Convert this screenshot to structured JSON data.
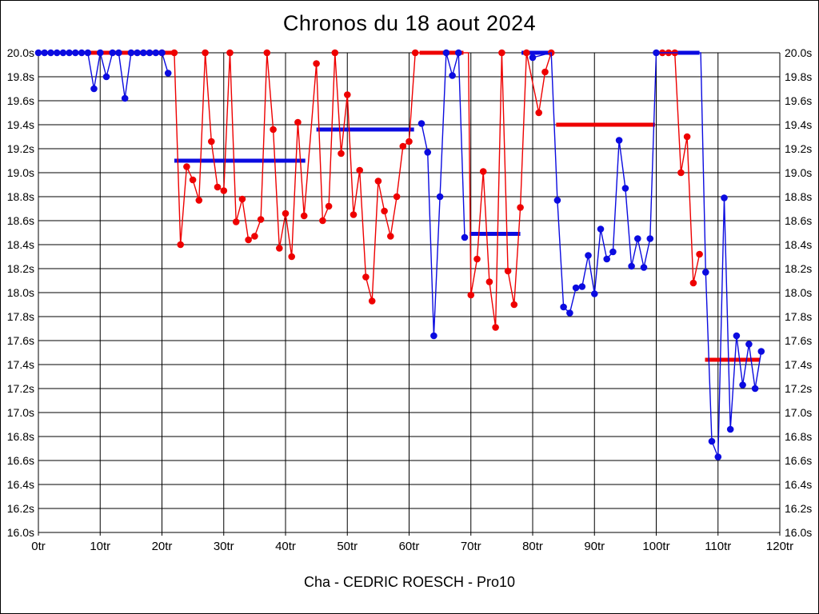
{
  "title": "Chronos du 18 aout 2024",
  "footer": "Cha - CEDRIC ROESCH - Pro10",
  "chart_data": {
    "type": "line",
    "title": "Chronos du 18 aout 2024",
    "subtitle": "Cha - CEDRIC ROESCH - Pro10",
    "grid": true,
    "xlim": [
      0,
      120
    ],
    "ylim": [
      16.0,
      20.0
    ],
    "x_unit": "tr",
    "y_unit": "s",
    "x_ticks": [
      {
        "v": 0,
        "label": "0tr"
      },
      {
        "v": 10,
        "label": "10tr"
      },
      {
        "v": 20,
        "label": "20tr"
      },
      {
        "v": 30,
        "label": "30tr"
      },
      {
        "v": 40,
        "label": "40tr"
      },
      {
        "v": 50,
        "label": "50tr"
      },
      {
        "v": 60,
        "label": "60tr"
      },
      {
        "v": 70,
        "label": "70tr"
      },
      {
        "v": 80,
        "label": "80tr"
      },
      {
        "v": 90,
        "label": "90tr"
      },
      {
        "v": 100,
        "label": "100tr"
      },
      {
        "v": 110,
        "label": "110tr"
      },
      {
        "v": 120,
        "label": "120tr"
      }
    ],
    "y_ticks": [
      {
        "v": 20.0,
        "label": "20.0s"
      },
      {
        "v": 19.8,
        "label": "19.8s"
      },
      {
        "v": 19.6,
        "label": "19.6s"
      },
      {
        "v": 19.4,
        "label": "19.4s"
      },
      {
        "v": 19.2,
        "label": "19.2s"
      },
      {
        "v": 19.0,
        "label": "19.0s"
      },
      {
        "v": 18.8,
        "label": "18.8s"
      },
      {
        "v": 18.6,
        "label": "18.6s"
      },
      {
        "v": 18.4,
        "label": "18.4s"
      },
      {
        "v": 18.2,
        "label": "18.2s"
      },
      {
        "v": 18.0,
        "label": "18.0s"
      },
      {
        "v": 17.8,
        "label": "17.8s"
      },
      {
        "v": 17.6,
        "label": "17.6s"
      },
      {
        "v": 17.4,
        "label": "17.4s"
      },
      {
        "v": 17.2,
        "label": "17.2s"
      },
      {
        "v": 17.0,
        "label": "17.0s"
      },
      {
        "v": 16.8,
        "label": "16.8s"
      },
      {
        "v": 16.6,
        "label": "16.6s"
      },
      {
        "v": 16.4,
        "label": "16.4s"
      },
      {
        "v": 16.2,
        "label": "16.2s"
      },
      {
        "v": 16.0,
        "label": "16.0s"
      }
    ],
    "colors": {
      "red": "#ee0000",
      "blue": "#0b0be0"
    },
    "series": [
      {
        "name": "driver-red",
        "color": "red",
        "stints": [
          [
            [
              20,
              20.0
            ],
            [
              22,
              20.0
            ],
            [
              23,
              18.4
            ],
            [
              24,
              19.05
            ],
            [
              25,
              18.94
            ],
            [
              26,
              18.77
            ],
            [
              27,
              20.0
            ],
            [
              28,
              19.26
            ],
            [
              29,
              18.88
            ],
            [
              30,
              18.85
            ],
            [
              31,
              20.0
            ],
            [
              32,
              18.59
            ],
            [
              33,
              18.78
            ],
            [
              34,
              18.44
            ],
            [
              35,
              18.47
            ],
            [
              36,
              18.61
            ],
            [
              37,
              20.0
            ],
            [
              38,
              19.36
            ],
            [
              39,
              18.37
            ],
            [
              40,
              18.66
            ],
            [
              41,
              18.3
            ],
            [
              42,
              19.42
            ],
            [
              43,
              18.64
            ],
            [
              45,
              19.91
            ],
            [
              46,
              18.6
            ],
            [
              47,
              18.72
            ],
            [
              48,
              20.0
            ],
            [
              49,
              19.16
            ],
            [
              50,
              19.65
            ],
            [
              51,
              18.65
            ],
            [
              52,
              19.02
            ],
            [
              53,
              18.13
            ],
            [
              54,
              17.93
            ],
            [
              55,
              18.93
            ],
            [
              56,
              18.68
            ],
            [
              57,
              18.47
            ],
            [
              58,
              18.8
            ],
            [
              59,
              19.22
            ],
            [
              60,
              19.26
            ],
            [
              61,
              20.0
            ],
            [
              69.6,
              20.0,
              0
            ],
            [
              70,
              17.98
            ],
            [
              71,
              18.28
            ],
            [
              72,
              19.01
            ],
            [
              73,
              18.09
            ],
            [
              74,
              17.71
            ],
            [
              75,
              20.0
            ],
            [
              76,
              18.18
            ],
            [
              77,
              17.9
            ],
            [
              78,
              18.71
            ],
            [
              79,
              20.0
            ],
            [
              81,
              19.5
            ],
            [
              82,
              19.84
            ],
            [
              83,
              20.0
            ]
          ],
          [
            [
              101,
              20.0
            ],
            [
              102,
              20.0
            ],
            [
              103,
              20.0
            ],
            [
              104,
              19.0
            ],
            [
              105,
              19.3
            ],
            [
              106,
              18.08
            ],
            [
              107,
              18.32
            ]
          ]
        ]
      },
      {
        "name": "driver-blue",
        "color": "blue",
        "stints": [
          [
            [
              0,
              20.0
            ],
            [
              1,
              20.0
            ],
            [
              2,
              20.0
            ],
            [
              3,
              20.0
            ],
            [
              4,
              20.0
            ],
            [
              5,
              20.0
            ],
            [
              6,
              20.0
            ],
            [
              7,
              20.0
            ],
            [
              8,
              20.0
            ],
            [
              9,
              19.7
            ],
            [
              10,
              20.0
            ],
            [
              11,
              19.8
            ],
            [
              12,
              20.0
            ],
            [
              13,
              20.0
            ],
            [
              14,
              19.62
            ],
            [
              15,
              20.0
            ],
            [
              16,
              20.0
            ],
            [
              17,
              20.0
            ],
            [
              18,
              20.0
            ],
            [
              19,
              20.0
            ],
            [
              20,
              20.0
            ],
            [
              21,
              19.83
            ]
          ],
          [
            [
              62,
              19.41
            ],
            [
              63,
              19.17
            ],
            [
              64,
              17.64
            ],
            [
              65,
              18.8
            ],
            [
              66,
              20.0
            ],
            [
              67,
              19.81
            ],
            [
              68,
              20.0
            ],
            [
              69,
              18.46
            ]
          ],
          [
            [
              80,
              19.96
            ],
            [
              83,
              20.0,
              0
            ],
            [
              84,
              18.77
            ],
            [
              85,
              17.88
            ],
            [
              86,
              17.83
            ],
            [
              87,
              18.04
            ],
            [
              88,
              18.05
            ],
            [
              89,
              18.31
            ],
            [
              90,
              17.99
            ],
            [
              91,
              18.53
            ],
            [
              92,
              18.28
            ],
            [
              93,
              18.34
            ],
            [
              94,
              19.27
            ],
            [
              95,
              18.87
            ],
            [
              96,
              18.22
            ],
            [
              97,
              18.45
            ],
            [
              98,
              18.21
            ],
            [
              99,
              18.45
            ],
            [
              100,
              20.0
            ],
            [
              107.2,
              20.0,
              0
            ],
            [
              108,
              18.17
            ],
            [
              109,
              16.76
            ],
            [
              110,
              16.63
            ],
            [
              111,
              18.79
            ],
            [
              112,
              16.86
            ],
            [
              113,
              17.64
            ],
            [
              114,
              17.23
            ],
            [
              115,
              17.57
            ],
            [
              116,
              17.2
            ],
            [
              117,
              17.51
            ]
          ]
        ]
      }
    ],
    "segments": [
      {
        "color": "red",
        "y": 20.0,
        "x1": 8.4,
        "x2": 21.8
      },
      {
        "color": "blue",
        "y": 19.1,
        "x1": 22.0,
        "x2": 43.2
      },
      {
        "color": "blue",
        "y": 19.36,
        "x1": 45.0,
        "x2": 60.8
      },
      {
        "color": "red",
        "y": 20.0,
        "x1": 61.7,
        "x2": 68.8
      },
      {
        "color": "blue",
        "y": 18.49,
        "x1": 69.8,
        "x2": 78.0
      },
      {
        "color": "blue",
        "y": 20.0,
        "x1": 78.2,
        "x2": 83.0
      },
      {
        "color": "red",
        "y": 19.4,
        "x1": 83.8,
        "x2": 99.8
      },
      {
        "color": "blue",
        "y": 20.0,
        "x1": 103.1,
        "x2": 107.0
      },
      {
        "color": "red",
        "y": 17.44,
        "x1": 107.9,
        "x2": 116.8
      }
    ]
  }
}
